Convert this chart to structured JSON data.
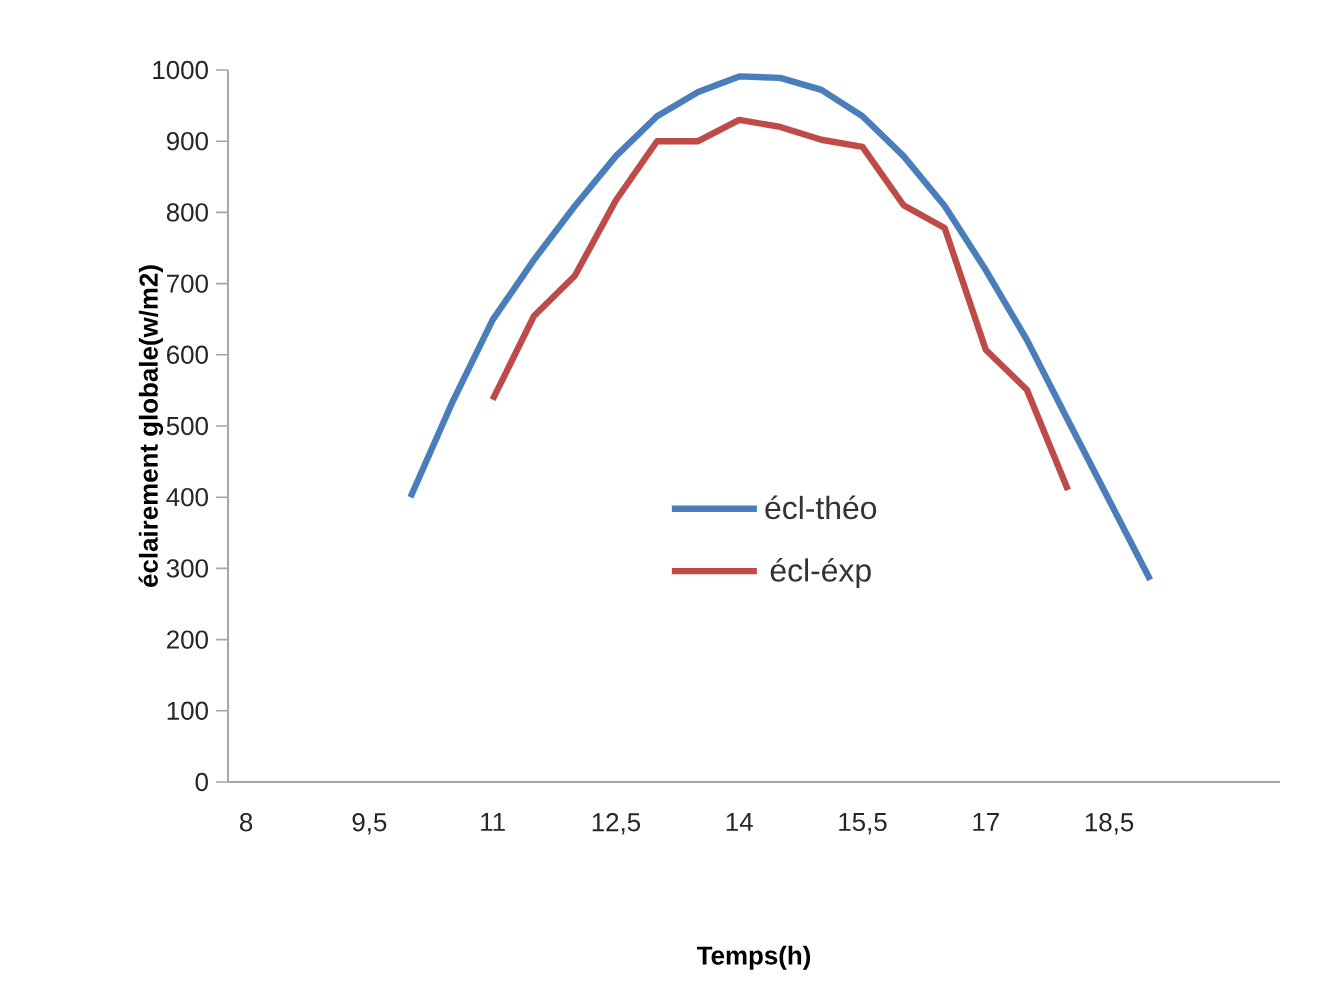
{
  "chart_data": {
    "type": "line",
    "xlabel": "Temps(h)",
    "ylabel": "éclairement globale(w/m2)",
    "xlim": [
      7.78,
      20.58
    ],
    "ylim": [
      0,
      1000
    ],
    "xticks": [
      8,
      {
        "value": 9.5,
        "label": "9,5"
      },
      11,
      {
        "value": 12.5,
        "label": "12,5"
      },
      14,
      {
        "value": 15.5,
        "label": "15,5"
      },
      17,
      {
        "value": 18.5,
        "label": "18,5"
      }
    ],
    "yticks": [
      0,
      100,
      200,
      300,
      400,
      500,
      600,
      700,
      800,
      900,
      1000
    ],
    "legend": "center",
    "grid": false,
    "series": [
      {
        "name": "écl-théo",
        "color": "#4a7ebb",
        "x": [
          10,
          10.5,
          11,
          11.5,
          12,
          12.5,
          13,
          13.5,
          14,
          14.5,
          15,
          15.5,
          16,
          16.5,
          17,
          17.5,
          18,
          18.5,
          19
        ],
        "values": [
          400,
          531,
          649,
          733,
          809,
          879,
          935,
          969,
          991,
          989,
          972,
          935,
          879,
          809,
          719,
          621,
          508,
          396,
          284
        ]
      },
      {
        "name": "écl-éxp",
        "color": "#be4b48",
        "x": [
          11,
          11.5,
          12,
          12.5,
          13,
          13.5,
          14,
          14.5,
          15,
          15.5,
          16,
          16.5,
          17,
          17.5,
          18
        ],
        "values": [
          537,
          654,
          711,
          817,
          900,
          900,
          930,
          920,
          902,
          892,
          810,
          778,
          607,
          551,
          410
        ]
      }
    ]
  }
}
